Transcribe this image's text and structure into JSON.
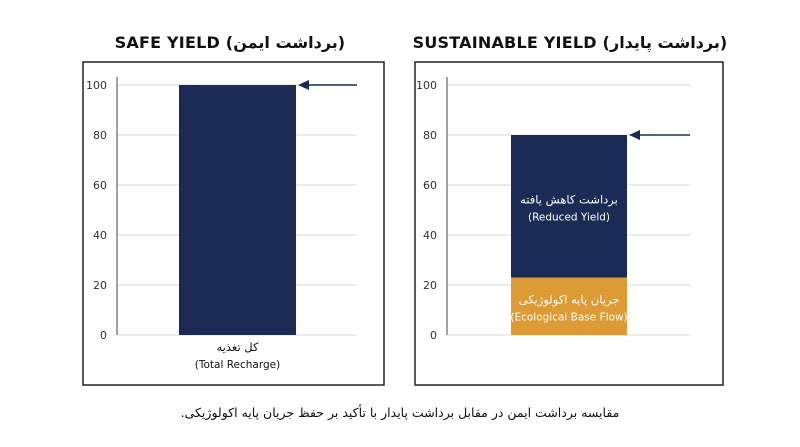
{
  "caption": "مقایسه برداشت ایمن در مقابل برداشت پایدار با تأکید بر حفظ جریان پایه اکولوژیکی.",
  "colors": {
    "navy": "#1c2b55",
    "orange": "#dc9b35",
    "grid": "#d9d9d9",
    "frame": "#222222",
    "arrow": "#1c2b55",
    "label_on_bar": "#ffffff",
    "text": "#111111"
  },
  "chart_data": [
    {
      "type": "bar",
      "title": "SAFE YIELD (برداشت ایمن)",
      "ylim": [
        0,
        100
      ],
      "yticks": [
        0,
        20,
        40,
        60,
        80,
        100
      ],
      "grid": true,
      "categories": [
        "کل تغذیه\n(Total Recharge)"
      ],
      "series": [
        {
          "name": "",
          "color_key": "navy",
          "values": [
            100
          ]
        }
      ],
      "bar_labels": [],
      "category_labels": [
        {
          "line1": "کل تغذیه",
          "line2": "(Total Recharge)"
        }
      ],
      "arrow_at": 100
    },
    {
      "type": "bar",
      "title": "SUSTAINABLE YIELD (برداشت پایدار)",
      "ylim": [
        0,
        100
      ],
      "yticks": [
        0,
        20,
        40,
        60,
        80,
        100
      ],
      "grid": true,
      "stacked": true,
      "categories": [
        ""
      ],
      "series": [
        {
          "name": "جریان پایه اکولوژیکی (Ecological Base Flow)",
          "color_key": "orange",
          "values": [
            23
          ]
        },
        {
          "name": "برداشت کاهش یافته (Reduced Yield)",
          "color_key": "navy",
          "values": [
            57
          ]
        }
      ],
      "bar_labels": [
        {
          "line1": "جریان پایه اکولوژیکی",
          "line2": "(Ecological Base Flow)"
        },
        {
          "line1": "برداشت کاهش یافته",
          "line2": "(Reduced Yield)"
        }
      ],
      "category_labels": [],
      "arrow_at": 80
    }
  ]
}
